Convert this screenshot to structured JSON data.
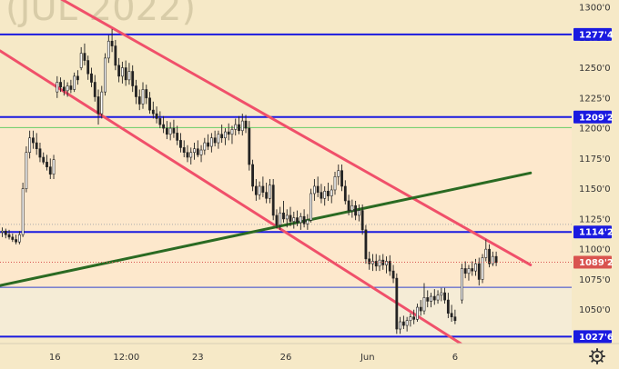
{
  "chart_data": {
    "type": "candlestick",
    "watermark": "(JUL 2022)",
    "y_axis": {
      "range": [
        1022,
        1306
      ],
      "ticks": [
        1300.0,
        1275.0,
        1250.0,
        1225.0,
        1200.0,
        1175.0,
        1150.0,
        1125.0,
        1100.0,
        1075.0,
        1050.0
      ],
      "tick_labels": [
        "1300'0",
        "1275'0",
        "1250'0",
        "1225'0",
        "1200'0",
        "1175'0",
        "1150'0",
        "1125'0",
        "1100'0",
        "1075'0",
        "1050'0"
      ]
    },
    "x_axis": {
      "range": [
        0,
        100
      ],
      "tick_positions": [
        9.6,
        22.1,
        34.6,
        50.0,
        64.3,
        79.6
      ],
      "tick_labels": [
        "16",
        "12:00",
        "23",
        "26",
        "Jun",
        "6"
      ]
    },
    "levels": [
      {
        "label": "1277'4",
        "value": 1277.5,
        "color": "#1a1ae0"
      },
      {
        "label": "1209'2",
        "value": 1209.25,
        "color": "#1a1ae0"
      },
      {
        "label": "1114'2",
        "value": 1114.25,
        "color": "#1a1ae0"
      },
      {
        "label": "1027'6",
        "value": 1027.75,
        "color": "#1a1ae0"
      }
    ],
    "current_price": {
      "label": "1089'2",
      "value": 1089.25,
      "color": "#d9534f"
    },
    "thin_levels": [
      {
        "value": 1200.5,
        "color": "#66cc66"
      },
      {
        "value": 1068.5,
        "color": "#3344cc"
      },
      {
        "value": 1120.5,
        "color": "#aaaaaa"
      }
    ],
    "trend_lines": [
      {
        "name": "channel-upper",
        "color": "#f0506a",
        "points": [
          [
            9.9,
            1309
          ],
          [
            92.8,
            1087
          ]
        ]
      },
      {
        "name": "channel-lower",
        "color": "#f0506a",
        "points": [
          [
            0,
            1264
          ],
          [
            80.6,
            1022
          ]
        ]
      },
      {
        "name": "support-trend",
        "color": "#2a6a22",
        "points": [
          [
            0,
            1070
          ],
          [
            92.8,
            1163
          ]
        ]
      }
    ],
    "zones": [
      {
        "from": 1209.25,
        "to": 1306,
        "color": "#f6e9c7"
      },
      {
        "from": 1068.5,
        "to": 1209.25,
        "color": "#fde8cc"
      },
      {
        "from": 1027.75,
        "to": 1068.5,
        "color": "#f5ecd6"
      },
      {
        "from": 1022,
        "to": 1027.75,
        "color": "#f6e9c7"
      }
    ],
    "candles": [
      {
        "x": 0.4,
        "o": 1114,
        "h": 1118,
        "l": 1110,
        "c": 1115
      },
      {
        "x": 1.0,
        "o": 1115,
        "h": 1117,
        "l": 1109,
        "c": 1112
      },
      {
        "x": 1.6,
        "o": 1112,
        "h": 1116,
        "l": 1108,
        "c": 1110
      },
      {
        "x": 2.2,
        "o": 1110,
        "h": 1113,
        "l": 1106,
        "c": 1108
      },
      {
        "x": 2.8,
        "o": 1108,
        "h": 1112,
        "l": 1104,
        "c": 1106
      },
      {
        "x": 3.4,
        "o": 1106,
        "h": 1115,
        "l": 1104,
        "c": 1112
      },
      {
        "x": 4.0,
        "o": 1112,
        "h": 1155,
        "l": 1110,
        "c": 1150
      },
      {
        "x": 4.6,
        "o": 1150,
        "h": 1185,
        "l": 1147,
        "c": 1180
      },
      {
        "x": 5.2,
        "o": 1180,
        "h": 1198,
        "l": 1175,
        "c": 1192
      },
      {
        "x": 5.8,
        "o": 1192,
        "h": 1198,
        "l": 1183,
        "c": 1188
      },
      {
        "x": 6.4,
        "o": 1188,
        "h": 1196,
        "l": 1178,
        "c": 1183
      },
      {
        "x": 7.0,
        "o": 1183,
        "h": 1188,
        "l": 1172,
        "c": 1176
      },
      {
        "x": 7.6,
        "o": 1176,
        "h": 1180,
        "l": 1170,
        "c": 1172
      },
      {
        "x": 8.2,
        "o": 1172,
        "h": 1178,
        "l": 1165,
        "c": 1168
      },
      {
        "x": 8.8,
        "o": 1168,
        "h": 1175,
        "l": 1158,
        "c": 1162
      },
      {
        "x": 9.4,
        "o": 1162,
        "h": 1178,
        "l": 1158,
        "c": 1174
      },
      {
        "x": 10.0,
        "o": 1230,
        "h": 1243,
        "l": 1225,
        "c": 1238
      },
      {
        "x": 10.6,
        "o": 1238,
        "h": 1242,
        "l": 1230,
        "c": 1234
      },
      {
        "x": 11.2,
        "o": 1234,
        "h": 1240,
        "l": 1227,
        "c": 1231
      },
      {
        "x": 11.8,
        "o": 1231,
        "h": 1238,
        "l": 1226,
        "c": 1235
      },
      {
        "x": 12.4,
        "o": 1235,
        "h": 1240,
        "l": 1229,
        "c": 1232
      },
      {
        "x": 13.0,
        "o": 1232,
        "h": 1246,
        "l": 1230,
        "c": 1243
      },
      {
        "x": 13.6,
        "o": 1243,
        "h": 1248,
        "l": 1236,
        "c": 1240
      },
      {
        "x": 14.2,
        "o": 1250,
        "h": 1267,
        "l": 1248,
        "c": 1262
      },
      {
        "x": 14.8,
        "o": 1262,
        "h": 1270,
        "l": 1252,
        "c": 1256
      },
      {
        "x": 15.4,
        "o": 1256,
        "h": 1260,
        "l": 1240,
        "c": 1245
      },
      {
        "x": 16.0,
        "o": 1245,
        "h": 1250,
        "l": 1234,
        "c": 1238
      },
      {
        "x": 16.6,
        "o": 1238,
        "h": 1244,
        "l": 1222,
        "c": 1226
      },
      {
        "x": 17.2,
        "o": 1226,
        "h": 1232,
        "l": 1203,
        "c": 1212
      },
      {
        "x": 17.8,
        "o": 1212,
        "h": 1235,
        "l": 1208,
        "c": 1230
      },
      {
        "x": 18.4,
        "o": 1230,
        "h": 1262,
        "l": 1227,
        "c": 1258
      },
      {
        "x": 19.0,
        "o": 1258,
        "h": 1277,
        "l": 1254,
        "c": 1272
      },
      {
        "x": 19.6,
        "o": 1272,
        "h": 1282,
        "l": 1263,
        "c": 1268
      },
      {
        "x": 20.2,
        "o": 1268,
        "h": 1273,
        "l": 1248,
        "c": 1252
      },
      {
        "x": 20.8,
        "o": 1252,
        "h": 1258,
        "l": 1238,
        "c": 1243
      },
      {
        "x": 21.4,
        "o": 1243,
        "h": 1255,
        "l": 1237,
        "c": 1250
      },
      {
        "x": 22.0,
        "o": 1250,
        "h": 1256,
        "l": 1235,
        "c": 1240
      },
      {
        "x": 22.6,
        "o": 1240,
        "h": 1254,
        "l": 1236,
        "c": 1247
      },
      {
        "x": 23.2,
        "o": 1247,
        "h": 1252,
        "l": 1230,
        "c": 1235
      },
      {
        "x": 23.8,
        "o": 1235,
        "h": 1240,
        "l": 1220,
        "c": 1226
      },
      {
        "x": 24.4,
        "o": 1226,
        "h": 1232,
        "l": 1215,
        "c": 1220
      },
      {
        "x": 25.0,
        "o": 1220,
        "h": 1238,
        "l": 1216,
        "c": 1232
      },
      {
        "x": 25.6,
        "o": 1232,
        "h": 1236,
        "l": 1220,
        "c": 1225
      },
      {
        "x": 26.2,
        "o": 1225,
        "h": 1230,
        "l": 1212,
        "c": 1215
      },
      {
        "x": 26.8,
        "o": 1215,
        "h": 1222,
        "l": 1208,
        "c": 1212
      },
      {
        "x": 27.4,
        "o": 1212,
        "h": 1218,
        "l": 1204,
        "c": 1208
      },
      {
        "x": 28.0,
        "o": 1208,
        "h": 1214,
        "l": 1200,
        "c": 1203
      },
      {
        "x": 28.6,
        "o": 1203,
        "h": 1210,
        "l": 1196,
        "c": 1200
      },
      {
        "x": 29.2,
        "o": 1200,
        "h": 1206,
        "l": 1191,
        "c": 1195
      },
      {
        "x": 29.8,
        "o": 1195,
        "h": 1205,
        "l": 1190,
        "c": 1200
      },
      {
        "x": 30.4,
        "o": 1200,
        "h": 1207,
        "l": 1192,
        "c": 1196
      },
      {
        "x": 31.0,
        "o": 1196,
        "h": 1202,
        "l": 1186,
        "c": 1190
      },
      {
        "x": 31.6,
        "o": 1190,
        "h": 1196,
        "l": 1180,
        "c": 1184
      },
      {
        "x": 32.2,
        "o": 1184,
        "h": 1190,
        "l": 1176,
        "c": 1180
      },
      {
        "x": 32.8,
        "o": 1180,
        "h": 1186,
        "l": 1172,
        "c": 1176
      },
      {
        "x": 33.4,
        "o": 1176,
        "h": 1184,
        "l": 1170,
        "c": 1180
      },
      {
        "x": 34.0,
        "o": 1180,
        "h": 1188,
        "l": 1174,
        "c": 1183
      },
      {
        "x": 34.6,
        "o": 1183,
        "h": 1190,
        "l": 1176,
        "c": 1178
      },
      {
        "x": 35.2,
        "o": 1178,
        "h": 1186,
        "l": 1172,
        "c": 1182
      },
      {
        "x": 35.8,
        "o": 1182,
        "h": 1192,
        "l": 1178,
        "c": 1188
      },
      {
        "x": 36.4,
        "o": 1188,
        "h": 1195,
        "l": 1182,
        "c": 1185
      },
      {
        "x": 37.0,
        "o": 1185,
        "h": 1196,
        "l": 1180,
        "c": 1192
      },
      {
        "x": 37.6,
        "o": 1192,
        "h": 1198,
        "l": 1185,
        "c": 1188
      },
      {
        "x": 38.2,
        "o": 1188,
        "h": 1198,
        "l": 1183,
        "c": 1195
      },
      {
        "x": 38.8,
        "o": 1195,
        "h": 1203,
        "l": 1188,
        "c": 1192
      },
      {
        "x": 39.4,
        "o": 1192,
        "h": 1200,
        "l": 1186,
        "c": 1197
      },
      {
        "x": 40.0,
        "o": 1197,
        "h": 1204,
        "l": 1190,
        "c": 1195
      },
      {
        "x": 40.6,
        "o": 1195,
        "h": 1202,
        "l": 1187,
        "c": 1199
      },
      {
        "x": 41.2,
        "o": 1199,
        "h": 1208,
        "l": 1194,
        "c": 1203
      },
      {
        "x": 41.8,
        "o": 1203,
        "h": 1210,
        "l": 1195,
        "c": 1198
      },
      {
        "x": 42.4,
        "o": 1198,
        "h": 1212,
        "l": 1194,
        "c": 1206
      },
      {
        "x": 43.0,
        "o": 1206,
        "h": 1211,
        "l": 1196,
        "c": 1200
      },
      {
        "x": 43.6,
        "o": 1200,
        "h": 1206,
        "l": 1165,
        "c": 1170
      },
      {
        "x": 44.2,
        "o": 1170,
        "h": 1174,
        "l": 1148,
        "c": 1152
      },
      {
        "x": 44.8,
        "o": 1152,
        "h": 1158,
        "l": 1140,
        "c": 1145
      },
      {
        "x": 45.4,
        "o": 1145,
        "h": 1156,
        "l": 1141,
        "c": 1152
      },
      {
        "x": 46.0,
        "o": 1152,
        "h": 1160,
        "l": 1143,
        "c": 1147
      },
      {
        "x": 46.6,
        "o": 1147,
        "h": 1155,
        "l": 1138,
        "c": 1142
      },
      {
        "x": 47.2,
        "o": 1142,
        "h": 1158,
        "l": 1138,
        "c": 1153
      },
      {
        "x": 47.8,
        "o": 1153,
        "h": 1158,
        "l": 1124,
        "c": 1128
      },
      {
        "x": 48.4,
        "o": 1128,
        "h": 1133,
        "l": 1117,
        "c": 1120
      },
      {
        "x": 49.0,
        "o": 1120,
        "h": 1135,
        "l": 1116,
        "c": 1130
      },
      {
        "x": 49.6,
        "o": 1130,
        "h": 1140,
        "l": 1122,
        "c": 1125
      },
      {
        "x": 50.2,
        "o": 1125,
        "h": 1133,
        "l": 1118,
        "c": 1128
      },
      {
        "x": 50.8,
        "o": 1128,
        "h": 1135,
        "l": 1119,
        "c": 1123
      },
      {
        "x": 51.4,
        "o": 1123,
        "h": 1131,
        "l": 1117,
        "c": 1126
      },
      {
        "x": 52.0,
        "o": 1126,
        "h": 1132,
        "l": 1119,
        "c": 1122
      },
      {
        "x": 52.6,
        "o": 1122,
        "h": 1130,
        "l": 1116,
        "c": 1127
      },
      {
        "x": 53.2,
        "o": 1127,
        "h": 1133,
        "l": 1118,
        "c": 1121
      },
      {
        "x": 53.8,
        "o": 1121,
        "h": 1129,
        "l": 1116,
        "c": 1124
      },
      {
        "x": 54.4,
        "o": 1124,
        "h": 1150,
        "l": 1122,
        "c": 1146
      },
      {
        "x": 55.0,
        "o": 1146,
        "h": 1158,
        "l": 1140,
        "c": 1152
      },
      {
        "x": 55.6,
        "o": 1152,
        "h": 1160,
        "l": 1143,
        "c": 1147
      },
      {
        "x": 56.2,
        "o": 1147,
        "h": 1154,
        "l": 1138,
        "c": 1142
      },
      {
        "x": 56.8,
        "o": 1142,
        "h": 1152,
        "l": 1136,
        "c": 1148
      },
      {
        "x": 57.4,
        "o": 1148,
        "h": 1155,
        "l": 1140,
        "c": 1144
      },
      {
        "x": 58.0,
        "o": 1144,
        "h": 1153,
        "l": 1138,
        "c": 1149
      },
      {
        "x": 58.6,
        "o": 1149,
        "h": 1164,
        "l": 1145,
        "c": 1160
      },
      {
        "x": 59.2,
        "o": 1160,
        "h": 1170,
        "l": 1153,
        "c": 1165
      },
      {
        "x": 59.8,
        "o": 1165,
        "h": 1170,
        "l": 1148,
        "c": 1152
      },
      {
        "x": 60.4,
        "o": 1152,
        "h": 1157,
        "l": 1137,
        "c": 1140
      },
      {
        "x": 61.0,
        "o": 1140,
        "h": 1145,
        "l": 1128,
        "c": 1132
      },
      {
        "x": 61.6,
        "o": 1132,
        "h": 1141,
        "l": 1126,
        "c": 1136
      },
      {
        "x": 62.2,
        "o": 1136,
        "h": 1140,
        "l": 1124,
        "c": 1128
      },
      {
        "x": 62.8,
        "o": 1128,
        "h": 1137,
        "l": 1123,
        "c": 1132
      },
      {
        "x": 63.4,
        "o": 1132,
        "h": 1137,
        "l": 1112,
        "c": 1116
      },
      {
        "x": 64.0,
        "o": 1116,
        "h": 1120,
        "l": 1088,
        "c": 1092
      },
      {
        "x": 64.6,
        "o": 1092,
        "h": 1098,
        "l": 1083,
        "c": 1088
      },
      {
        "x": 65.2,
        "o": 1088,
        "h": 1096,
        "l": 1082,
        "c": 1090
      },
      {
        "x": 65.8,
        "o": 1090,
        "h": 1096,
        "l": 1082,
        "c": 1086
      },
      {
        "x": 66.4,
        "o": 1086,
        "h": 1095,
        "l": 1082,
        "c": 1091
      },
      {
        "x": 67.0,
        "o": 1091,
        "h": 1096,
        "l": 1083,
        "c": 1087
      },
      {
        "x": 67.6,
        "o": 1087,
        "h": 1094,
        "l": 1080,
        "c": 1090
      },
      {
        "x": 68.2,
        "o": 1090,
        "h": 1095,
        "l": 1078,
        "c": 1082
      },
      {
        "x": 68.8,
        "o": 1082,
        "h": 1087,
        "l": 1072,
        "c": 1076
      },
      {
        "x": 69.4,
        "o": 1076,
        "h": 1080,
        "l": 1030,
        "c": 1034
      },
      {
        "x": 70.0,
        "o": 1034,
        "h": 1044,
        "l": 1030,
        "c": 1040
      },
      {
        "x": 70.6,
        "o": 1040,
        "h": 1045,
        "l": 1034,
        "c": 1037
      },
      {
        "x": 71.2,
        "o": 1037,
        "h": 1044,
        "l": 1032,
        "c": 1041
      },
      {
        "x": 71.8,
        "o": 1041,
        "h": 1047,
        "l": 1036,
        "c": 1044
      },
      {
        "x": 72.4,
        "o": 1044,
        "h": 1050,
        "l": 1038,
        "c": 1042
      },
      {
        "x": 73.0,
        "o": 1042,
        "h": 1055,
        "l": 1040,
        "c": 1052
      },
      {
        "x": 73.6,
        "o": 1052,
        "h": 1058,
        "l": 1045,
        "c": 1049
      },
      {
        "x": 74.2,
        "o": 1049,
        "h": 1072,
        "l": 1046,
        "c": 1060
      },
      {
        "x": 74.8,
        "o": 1060,
        "h": 1066,
        "l": 1052,
        "c": 1057
      },
      {
        "x": 75.4,
        "o": 1057,
        "h": 1064,
        "l": 1052,
        "c": 1061
      },
      {
        "x": 76.0,
        "o": 1061,
        "h": 1067,
        "l": 1054,
        "c": 1058
      },
      {
        "x": 76.6,
        "o": 1058,
        "h": 1066,
        "l": 1055,
        "c": 1062
      },
      {
        "x": 77.2,
        "o": 1062,
        "h": 1068,
        "l": 1057,
        "c": 1064
      },
      {
        "x": 77.8,
        "o": 1064,
        "h": 1068,
        "l": 1055,
        "c": 1058
      },
      {
        "x": 78.4,
        "o": 1058,
        "h": 1064,
        "l": 1043,
        "c": 1047
      },
      {
        "x": 79.0,
        "o": 1047,
        "h": 1054,
        "l": 1040,
        "c": 1044
      },
      {
        "x": 79.6,
        "o": 1044,
        "h": 1050,
        "l": 1038,
        "c": 1041
      },
      {
        "x": 80.8,
        "o": 1058,
        "h": 1088,
        "l": 1055,
        "c": 1084
      },
      {
        "x": 81.4,
        "o": 1084,
        "h": 1090,
        "l": 1076,
        "c": 1080
      },
      {
        "x": 82.0,
        "o": 1080,
        "h": 1087,
        "l": 1074,
        "c": 1084
      },
      {
        "x": 82.6,
        "o": 1084,
        "h": 1090,
        "l": 1078,
        "c": 1082
      },
      {
        "x": 83.2,
        "o": 1082,
        "h": 1092,
        "l": 1078,
        "c": 1088
      },
      {
        "x": 83.8,
        "o": 1088,
        "h": 1093,
        "l": 1070,
        "c": 1075
      },
      {
        "x": 84.4,
        "o": 1075,
        "h": 1096,
        "l": 1072,
        "c": 1093
      },
      {
        "x": 85.0,
        "o": 1093,
        "h": 1108,
        "l": 1090,
        "c": 1100
      },
      {
        "x": 85.6,
        "o": 1100,
        "h": 1104,
        "l": 1085,
        "c": 1088
      },
      {
        "x": 86.2,
        "o": 1088,
        "h": 1098,
        "l": 1086,
        "c": 1094
      },
      {
        "x": 86.8,
        "o": 1094,
        "h": 1098,
        "l": 1086,
        "c": 1089
      }
    ]
  },
  "settings_icon": "gear-icon"
}
